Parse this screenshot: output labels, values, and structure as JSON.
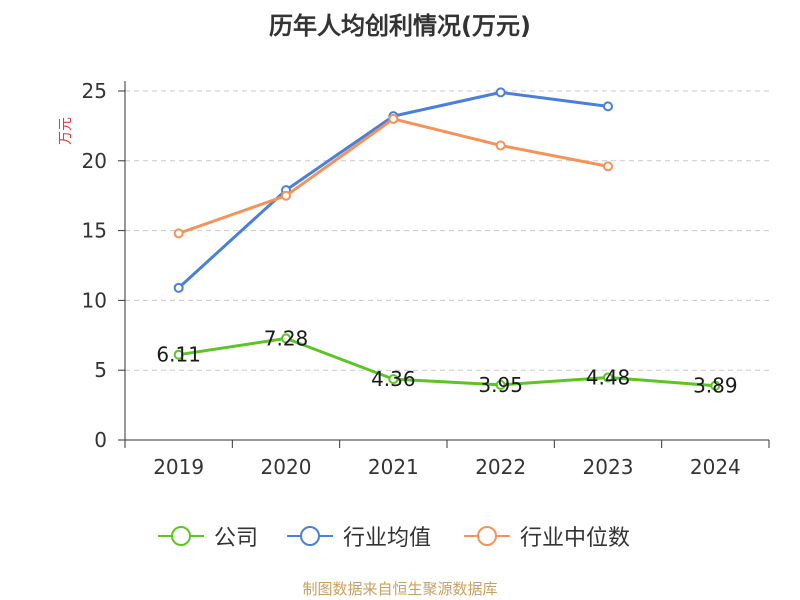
{
  "header": {
    "title": "历年人均创利情况(万元)"
  },
  "axis": {
    "y_unit": "万元"
  },
  "footer": {
    "note": "制图数据来自恒生聚源数据库"
  },
  "chart_data": {
    "type": "line",
    "title": "历年人均创利情况(万元)",
    "ylabel": "万元",
    "xlabel": "",
    "categories": [
      "2019",
      "2020",
      "2021",
      "2022",
      "2023",
      "2024"
    ],
    "ylim": [
      0,
      25
    ],
    "yticks": [
      0,
      5,
      10,
      15,
      20,
      25
    ],
    "grid": true,
    "legend_position": "bottom",
    "series": [
      {
        "name": "公司",
        "color": "#5cc425",
        "values": [
          6.11,
          7.28,
          4.36,
          3.95,
          4.48,
          3.89
        ],
        "labels": [
          "6.11",
          "7.28",
          "4.36",
          "3.95",
          "4.48",
          "3.89"
        ]
      },
      {
        "name": "行业均值",
        "color": "#4a7fdb",
        "values": [
          10.9,
          17.9,
          23.2,
          24.9,
          23.9,
          null
        ]
      },
      {
        "name": "行业中位数",
        "color": "#f59258",
        "values": [
          14.8,
          17.5,
          23.0,
          21.1,
          19.6,
          null
        ]
      }
    ]
  }
}
